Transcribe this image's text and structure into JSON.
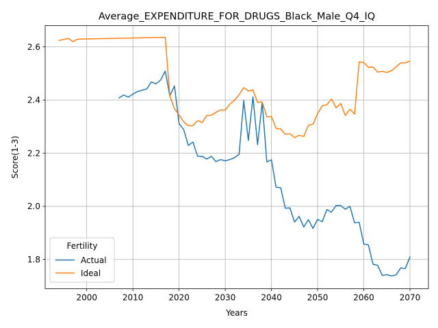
{
  "chart_data": {
    "type": "line",
    "title": "Average_EXPENDITURE_FOR_DRUGS_Black_Male_Q4_IQ",
    "xlabel": "Years",
    "ylabel": "Score(1-3)",
    "xlim": [
      1991,
      2074
    ],
    "ylim": [
      1.69,
      2.68
    ],
    "xticks": [
      2000,
      2010,
      2020,
      2030,
      2040,
      2050,
      2060,
      2070
    ],
    "yticks": [
      1.8,
      2.0,
      2.2,
      2.4,
      2.6
    ],
    "grid": true,
    "legend": {
      "title": "Fertility",
      "placement": "lower-left"
    },
    "series": [
      {
        "name": "Actual",
        "color": "#1f77b4",
        "x": [
          2007,
          2008,
          2009,
          2010,
          2011,
          2012,
          2013,
          2014,
          2015,
          2016,
          2017,
          2018,
          2019,
          2020,
          2021,
          2022,
          2023,
          2024,
          2025,
          2026,
          2027,
          2028,
          2029,
          2030,
          2031,
          2032,
          2033,
          2034,
          2035,
          2036,
          2037,
          2038,
          2039,
          2040,
          2041,
          2042,
          2043,
          2044,
          2045,
          2046,
          2047,
          2048,
          2049,
          2050,
          2051,
          2052,
          2053,
          2054,
          2055,
          2056,
          2057,
          2058,
          2059,
          2060,
          2061,
          2062,
          2063,
          2064,
          2065,
          2066,
          2067,
          2068,
          2069,
          2070
        ],
        "y": [
          2.408,
          2.419,
          2.411,
          2.422,
          2.432,
          2.437,
          2.442,
          2.468,
          2.461,
          2.475,
          2.509,
          2.415,
          2.453,
          2.311,
          2.289,
          2.229,
          2.242,
          2.189,
          2.188,
          2.178,
          2.188,
          2.168,
          2.176,
          2.171,
          2.176,
          2.183,
          2.196,
          2.398,
          2.248,
          2.412,
          2.232,
          2.391,
          2.167,
          2.175,
          2.072,
          2.07,
          1.993,
          1.994,
          1.941,
          1.962,
          1.922,
          1.95,
          1.917,
          1.951,
          1.942,
          1.988,
          1.978,
          2.003,
          2.003,
          1.989,
          2.0,
          1.938,
          1.94,
          1.858,
          1.855,
          1.782,
          1.778,
          1.74,
          1.743,
          1.738,
          1.742,
          1.768,
          1.766,
          1.81
        ]
      },
      {
        "name": "Ideal",
        "color": "#ff7f0e",
        "x": [
          1994,
          1995,
          1996,
          1997,
          1998,
          2017,
          2018,
          2019,
          2020,
          2021,
          2022,
          2023,
          2024,
          2025,
          2026,
          2027,
          2028,
          2029,
          2030,
          2031,
          2032,
          2033,
          2034,
          2035,
          2036,
          2037,
          2038,
          2039,
          2040,
          2041,
          2042,
          2043,
          2044,
          2045,
          2046,
          2047,
          2048,
          2049,
          2050,
          2051,
          2052,
          2053,
          2054,
          2055,
          2056,
          2057,
          2058,
          2059,
          2060,
          2061,
          2062,
          2063,
          2064,
          2065,
          2066,
          2067,
          2068,
          2069,
          2070
        ],
        "y": [
          2.624,
          2.628,
          2.632,
          2.62,
          2.629,
          2.636,
          2.415,
          2.367,
          2.343,
          2.318,
          2.303,
          2.304,
          2.323,
          2.315,
          2.342,
          2.343,
          2.354,
          2.363,
          2.362,
          2.385,
          2.399,
          2.42,
          2.447,
          2.434,
          2.438,
          2.391,
          2.393,
          2.337,
          2.338,
          2.293,
          2.291,
          2.271,
          2.273,
          2.259,
          2.267,
          2.263,
          2.305,
          2.309,
          2.349,
          2.378,
          2.382,
          2.404,
          2.371,
          2.387,
          2.342,
          2.365,
          2.347,
          2.544,
          2.541,
          2.523,
          2.524,
          2.505,
          2.508,
          2.504,
          2.51,
          2.525,
          2.54,
          2.54,
          2.547
        ]
      }
    ]
  }
}
